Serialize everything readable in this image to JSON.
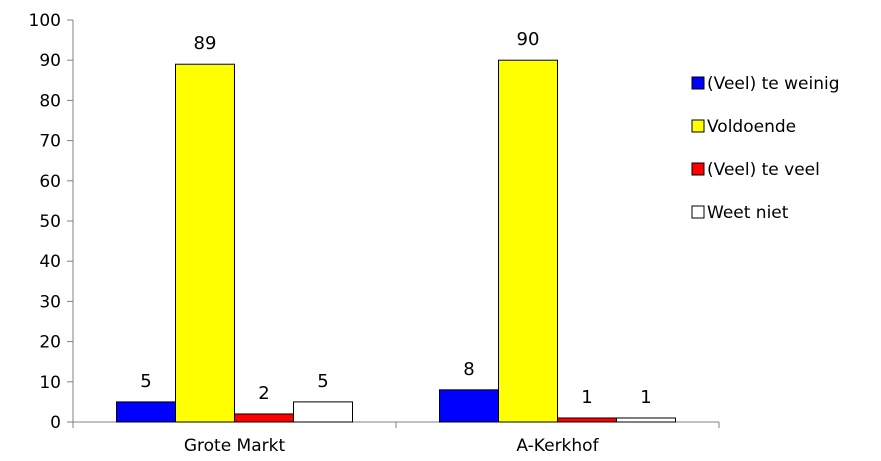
{
  "chart_data": {
    "type": "bar",
    "categories": [
      "Grote Markt",
      "A-Kerkhof"
    ],
    "series": [
      {
        "name": "(Veel) te weinig",
        "values": [
          5,
          8
        ],
        "color": "#0000FF"
      },
      {
        "name": "Voldoende",
        "values": [
          89,
          90
        ],
        "color": "#FFFF00"
      },
      {
        "name": "(Veel) te veel",
        "values": [
          2,
          1
        ],
        "color": "#FF0000"
      },
      {
        "name": "Weet niet",
        "values": [
          5,
          1
        ],
        "color": "#FFFFFF"
      }
    ],
    "ylim": [
      0,
      100
    ],
    "yticks": [
      "0",
      "10",
      "20",
      "30",
      "40",
      "50",
      "60",
      "70",
      "80",
      "90",
      "100"
    ],
    "data_labels": true,
    "grid": false,
    "legend": "right"
  }
}
